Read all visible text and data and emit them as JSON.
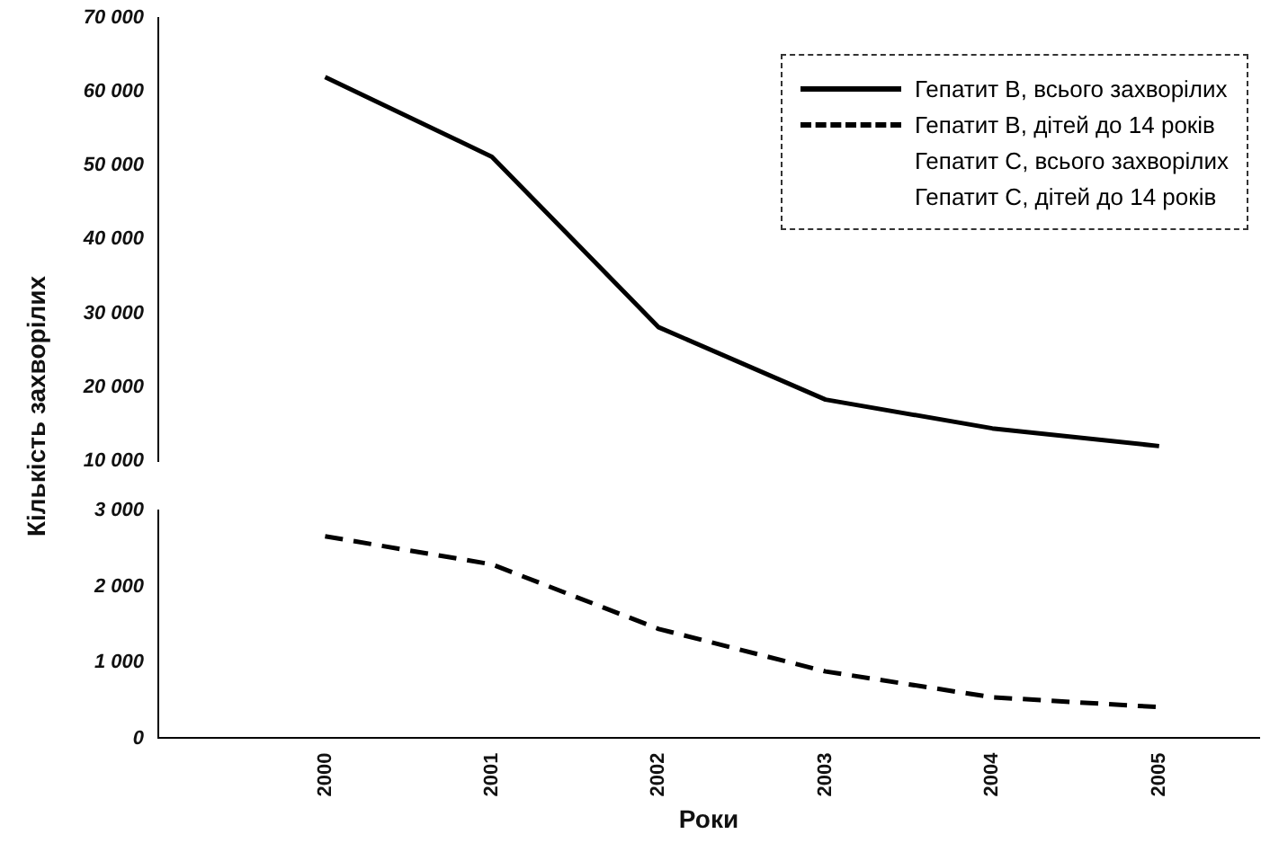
{
  "chart_data": [
    {
      "type": "line",
      "ylabel": "Кількість захворілих",
      "x": [
        2000,
        2001,
        2002,
        2003,
        2004,
        2005
      ],
      "ylim": [
        10000,
        70000
      ],
      "yticks": [
        {
          "value": 10000,
          "label": "10 000"
        },
        {
          "value": 20000,
          "label": "20 000"
        },
        {
          "value": 30000,
          "label": "30 000"
        },
        {
          "value": 40000,
          "label": "40 000"
        },
        {
          "value": 50000,
          "label": "50 000"
        },
        {
          "value": 60000,
          "label": "60 000"
        },
        {
          "value": 70000,
          "label": "70 000"
        }
      ],
      "tick_labels": "y",
      "grid": false,
      "legend": "top right",
      "marker": "none",
      "series": [
        {
          "name": "Гепатит В, всього захворілих",
          "color": "#000000",
          "line_style": "solid",
          "values": [
            62000,
            51200,
            28100,
            18300,
            14400,
            12000
          ]
        },
        {
          "name": "Гепатит В, дітей до 14 років",
          "color": "#000000",
          "line_style": "dashed",
          "values": [
            null,
            null,
            null,
            null,
            null,
            null
          ]
        },
        {
          "name": "Гепатит С, всього захворілих",
          "values": [
            null,
            null,
            null,
            null,
            null,
            null
          ]
        },
        {
          "name": "Гепатит С, дітей до 14 років",
          "values": [
            null,
            null,
            null,
            null,
            null,
            null
          ]
        }
      ]
    },
    {
      "type": "line",
      "xlabel": "Роки",
      "x": [
        2000,
        2001,
        2002,
        2003,
        2004,
        2005
      ],
      "xlim": [
        1999,
        2005.6
      ],
      "xticks": [
        2000,
        2001,
        2002,
        2003,
        2004,
        2005
      ],
      "ylim": [
        0,
        3000
      ],
      "yticks": [
        0,
        {
          "value": 1000,
          "label": "1 000"
        },
        {
          "value": 2000,
          "label": "2 000"
        },
        {
          "value": 3000,
          "label": "3 000"
        }
      ],
      "grid": false,
      "legend": false,
      "marker": "none",
      "series": [
        {
          "color": "#000000",
          "line_style": "dashed",
          "values": [
            2660,
            2290,
            1440,
            880,
            540,
            410
          ]
        }
      ]
    }
  ]
}
